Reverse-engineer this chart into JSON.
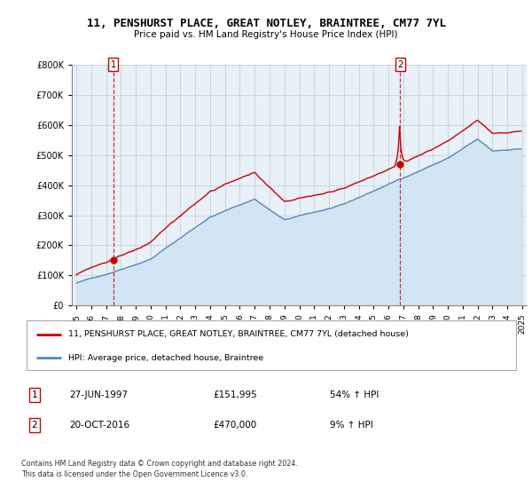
{
  "title": "11, PENSHURST PLACE, GREAT NOTLEY, BRAINTREE, CM77 7YL",
  "subtitle": "Price paid vs. HM Land Registry's House Price Index (HPI)",
  "legend_line1": "11, PENSHURST PLACE, GREAT NOTLEY, BRAINTREE, CM77 7YL (detached house)",
  "legend_line2": "HPI: Average price, detached house, Braintree",
  "sale1_date": "27-JUN-1997",
  "sale1_price": "£151,995",
  "sale1_hpi": "54% ↑ HPI",
  "sale2_date": "20-OCT-2016",
  "sale2_price": "£470,000",
  "sale2_hpi": "9% ↑ HPI",
  "footnote": "Contains HM Land Registry data © Crown copyright and database right 2024.\nThis data is licensed under the Open Government Licence v3.0.",
  "sale_color": "#cc0000",
  "hpi_color": "#5588bb",
  "hpi_fill_color": "#d0e4f5",
  "plot_bg_color": "#e8f0f8",
  "ylim": [
    0,
    800000
  ],
  "yticks": [
    0,
    100000,
    200000,
    300000,
    400000,
    500000,
    600000,
    700000,
    800000
  ],
  "sale1_x": 1997.5,
  "sale1_y": 151995,
  "sale2_x": 2016.79,
  "sale2_y": 470000,
  "xmin": 1994.7,
  "xmax": 2025.3
}
